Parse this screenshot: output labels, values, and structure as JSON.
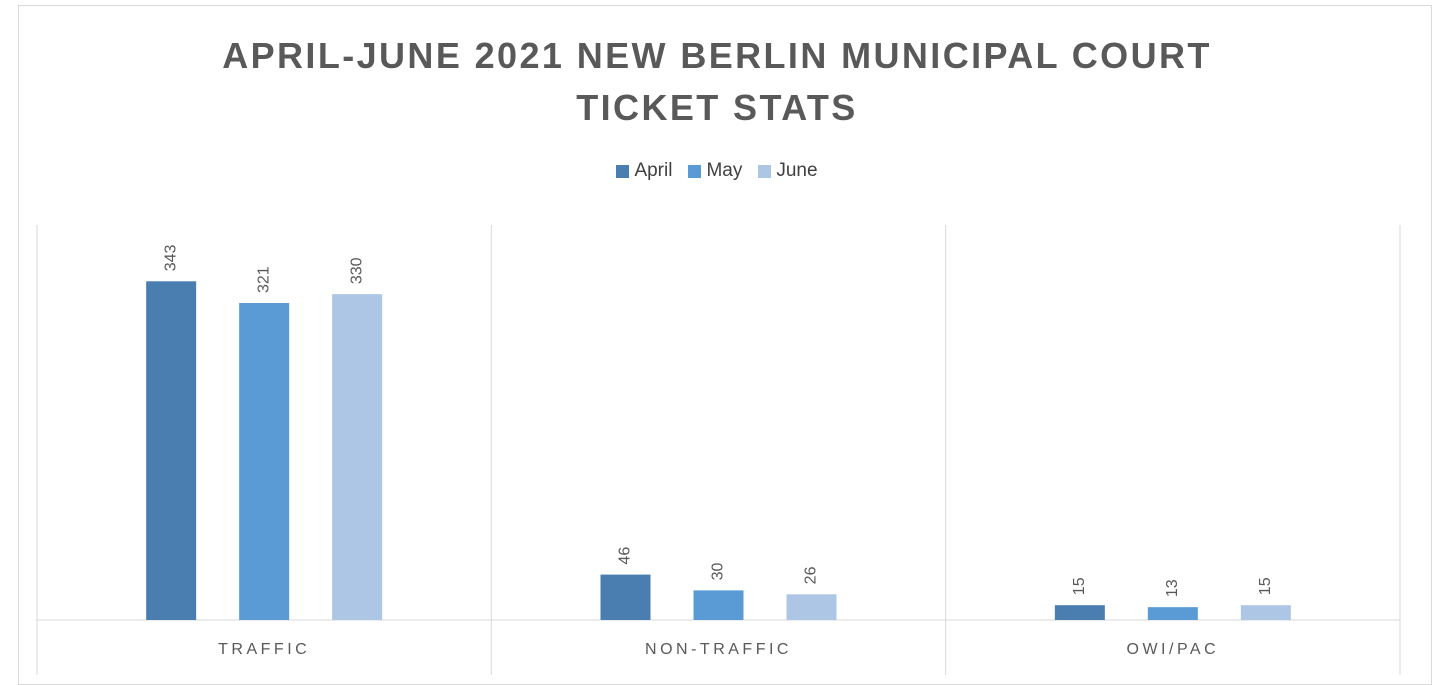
{
  "chart_data": {
    "type": "bar",
    "title": "APRIL-JUNE 2021 NEW BERLIN MUNICIPAL COURT TICKET STATS",
    "categories": [
      "TRAFFIC",
      "NON-TRAFFIC",
      "OWI/PAC"
    ],
    "series": [
      {
        "name": "April",
        "color": "#4a7eb0",
        "values": [
          343,
          46,
          15
        ]
      },
      {
        "name": "May",
        "color": "#5b9bd5",
        "values": [
          321,
          30,
          13
        ]
      },
      {
        "name": "June",
        "color": "#adc6e5",
        "values": [
          330,
          26,
          15
        ]
      }
    ],
    "ylim": [
      0,
      400
    ],
    "legend": "top"
  }
}
